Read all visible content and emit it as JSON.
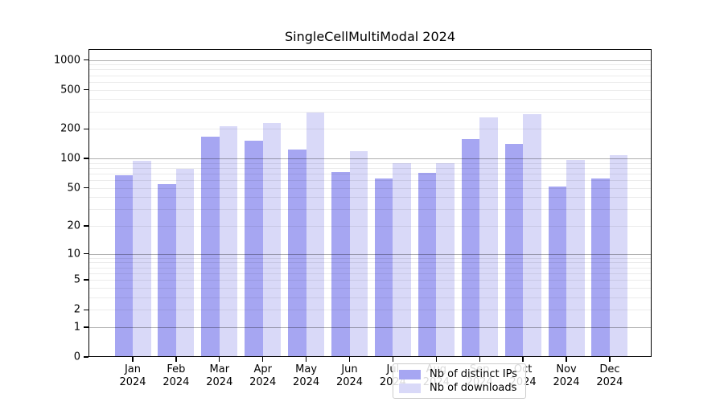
{
  "title": "SingleCellMultiModal 2024",
  "colors": {
    "ips_bar": "#a6a6f2",
    "downloads_bar": "#d9d9f8",
    "grid_major": "#b0b0b0",
    "grid_minor": "#ececec",
    "axis": "#000000"
  },
  "legend": {
    "position": "lower center",
    "items": [
      {
        "label": "Nb of distinct IPs",
        "series": "ips"
      },
      {
        "label": "Nb of downloads",
        "series": "downloads"
      }
    ]
  },
  "x_year": "2024",
  "chart_data": {
    "type": "bar",
    "title": "SingleCellMultiModal 2024",
    "xlabel": "",
    "ylabel": "",
    "yscale": "log1p",
    "ylim": [
      0,
      1288
    ],
    "grid": "on",
    "legend_position": "lower center",
    "categories": [
      "Jan",
      "Feb",
      "Mar",
      "Apr",
      "May",
      "Jun",
      "Jul",
      "Aug",
      "Sep",
      "Oct",
      "Nov",
      "Dec"
    ],
    "year": "2024",
    "series": [
      {
        "name": "Nb of distinct IPs",
        "values": [
          68,
          55,
          167,
          153,
          124,
          73,
          62,
          71,
          158,
          140,
          52,
          62
        ]
      },
      {
        "name": "Nb of downloads",
        "values": [
          94,
          79,
          215,
          228,
          295,
          120,
          89,
          90,
          262,
          280,
          96,
          109
        ]
      }
    ],
    "yticks": [
      0,
      1,
      2,
      5,
      10,
      20,
      50,
      100,
      200,
      500,
      1000
    ],
    "ytick_labels": [
      "0",
      "1",
      "2",
      "5",
      "10",
      "20",
      "50",
      "100",
      "200",
      "500",
      "1000"
    ],
    "major_grid_values": [
      1,
      10,
      100,
      1000
    ],
    "minor_grid_values": [
      2,
      3,
      4,
      5,
      6,
      7,
      8,
      9,
      20,
      30,
      40,
      50,
      60,
      70,
      80,
      90,
      200,
      300,
      400,
      500,
      600,
      700,
      800,
      900
    ]
  }
}
